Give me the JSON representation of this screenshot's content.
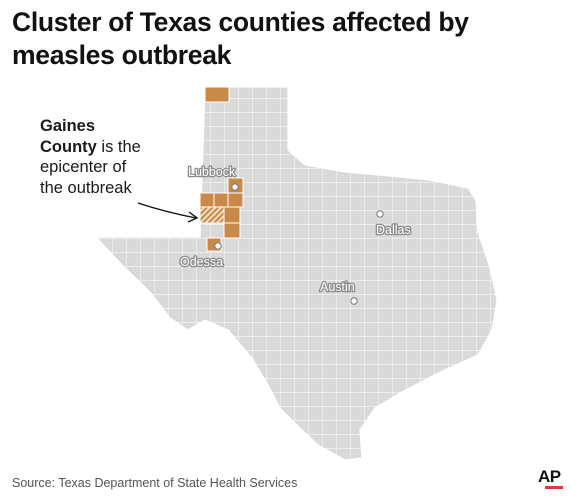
{
  "title": "Cluster of Texas counties affected by measles outbreak",
  "annotation": {
    "emphasis_line1": "Gaines",
    "emphasis_line2": "County",
    "rest_line2": " is the",
    "line3": "epicenter of",
    "line4": "the outbreak"
  },
  "cities": [
    {
      "name": "Lubbock"
    },
    {
      "name": "Dallas"
    },
    {
      "name": "Odessa"
    },
    {
      "name": "Austin"
    }
  ],
  "source": "Source: Texas Department of State Health Services",
  "logo": "AP",
  "colors": {
    "state_fill": "#d9d9d9",
    "county_lines": "#ffffff",
    "affected_fill": "#c98a49",
    "epicenter_hatch": "#c98a49",
    "logo_accent": "#e03a3e"
  }
}
